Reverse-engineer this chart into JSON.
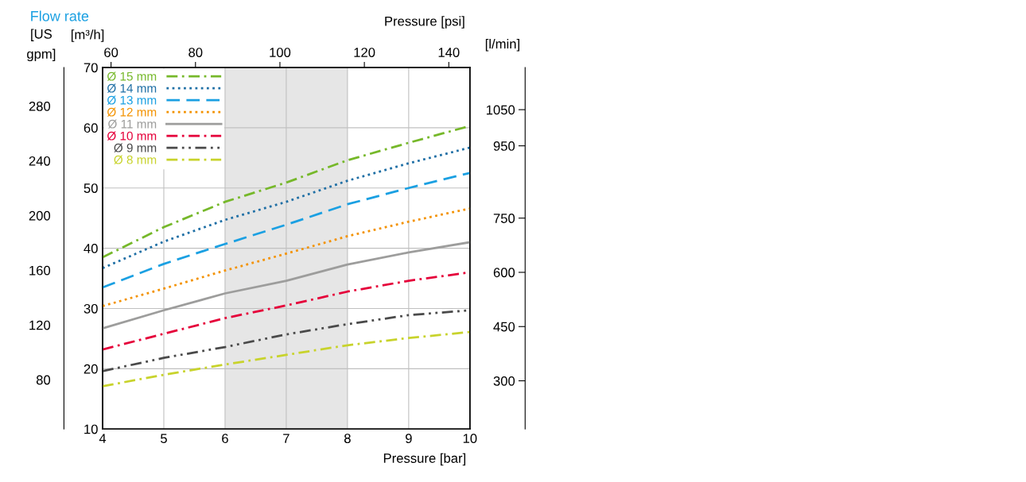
{
  "chart_data": {
    "type": "line",
    "title": "Flow rate",
    "xlabel": "Pressure [bar]",
    "ylabel": "[m³/h]",
    "y2label": "[US\ngpm]",
    "y3label": "[l/min]",
    "x2label": "Pressure [psi]",
    "x": [
      4,
      5,
      6,
      7,
      8,
      9,
      10
    ],
    "xlim": [
      4,
      10
    ],
    "xticks": [
      4,
      5,
      6,
      7,
      8,
      9,
      10
    ],
    "ylim": [
      10,
      70
    ],
    "yticks": [
      10,
      20,
      30,
      40,
      50,
      60,
      70
    ],
    "x2lim": [
      58.0,
      145.0
    ],
    "x2ticks": [
      60,
      80,
      100,
      120,
      140
    ],
    "y2lim": [
      44.0,
      308.2
    ],
    "y2ticks": [
      80,
      120,
      160,
      200,
      240,
      280
    ],
    "y3lim": [
      166.7,
      1166.7
    ],
    "y3ticks": [
      300,
      450,
      600,
      750,
      950,
      1050
    ],
    "bands": [
      {
        "axis": "x",
        "from": 6,
        "to": 8,
        "color": "#e6e6e6"
      }
    ],
    "grid": true,
    "legend": "top left",
    "marker": "none",
    "series": [
      {
        "name": "Ø 15 mm",
        "color": "#76b82a",
        "line_style": "dashdot",
        "values": [
          38.5,
          43.5,
          47.7,
          50.9,
          54.6,
          57.5,
          60.3
        ]
      },
      {
        "name": "Ø 14 mm",
        "color": "#1f6fa5",
        "line_style": "dotted",
        "values": [
          36.7,
          41.1,
          44.7,
          47.7,
          51.2,
          54.1,
          56.7
        ]
      },
      {
        "name": "Ø 13 mm",
        "color": "#1ba0e2",
        "line_style": "dashed",
        "values": [
          33.5,
          37.4,
          40.7,
          43.9,
          47.3,
          50.0,
          52.5
        ]
      },
      {
        "name": "Ø 12 mm",
        "color": "#f39200",
        "line_style": "dotted",
        "values": [
          30.4,
          33.3,
          36.3,
          39.1,
          42.0,
          44.4,
          46.6
        ]
      },
      {
        "name": "Ø 11 mm",
        "color": "#9d9d9c",
        "line_style": "solid",
        "values": [
          26.7,
          29.7,
          32.5,
          34.6,
          37.3,
          39.3,
          41.0
        ]
      },
      {
        "name": "Ø 10 mm",
        "color": "#e5003a",
        "line_style": "dashdot",
        "values": [
          23.2,
          25.8,
          28.4,
          30.5,
          32.8,
          34.6,
          36.0
        ]
      },
      {
        "name": "Ø 9 mm",
        "color": "#4a4a4a",
        "line_style": "dashdotdot",
        "values": [
          19.6,
          21.8,
          23.6,
          25.7,
          27.4,
          28.9,
          29.7
        ]
      },
      {
        "name": "Ø 8 mm",
        "color": "#c8d32c",
        "line_style": "dashdot",
        "values": [
          17.1,
          19.0,
          20.7,
          22.3,
          23.9,
          25.1,
          26.1
        ]
      }
    ]
  }
}
